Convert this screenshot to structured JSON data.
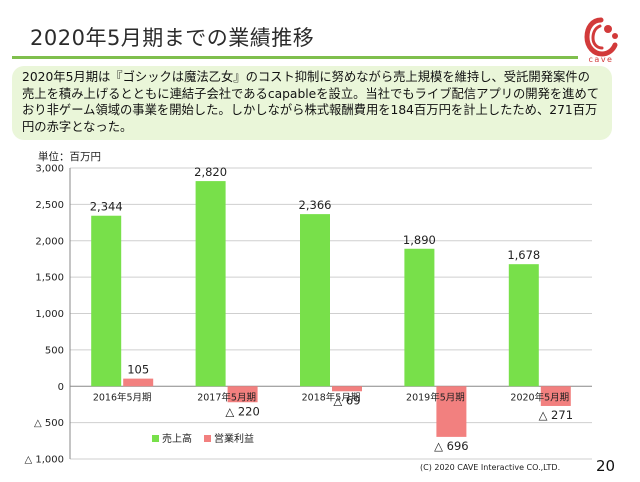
{
  "page": {
    "title": "2020年5月期までの業績推移",
    "summary": "2020年5月期は『ゴシックは魔法乙女』のコスト抑制に努めながら売上規模を維持し、受託開発案件の売上を積み上げるとともに連結子会社であるcapableを設立。当社でもライブ配信アプリの開発を進めており非ゲーム領域の事業を開始した。しかしながら株式報酬費用を184百万円を計上したため、271百万円の赤字となった。",
    "unit_label": "単位：百万円",
    "footer": "(C) 2020 CAVE Interactive CO.,LTD.",
    "page_number": "20",
    "logo_text": "cave"
  },
  "colors": {
    "accent_line": "#7fbf4d",
    "summary_bg": "#eaf6d9",
    "sales": "#78e04a",
    "operating_profit": "#f2807f",
    "logo": "#d23a3a"
  },
  "chart_data": {
    "type": "bar",
    "categories": [
      "2016年5月期",
      "2017年5月期",
      "2018年5月期",
      "2019年5月期",
      "2020年5月期"
    ],
    "series": [
      {
        "name": "売上高",
        "color": "#78e04a",
        "values": [
          2344,
          2820,
          2366,
          1890,
          1678
        ],
        "labels": [
          "2,344",
          "2,820",
          "2,366",
          "1,890",
          "1,678"
        ]
      },
      {
        "name": "営業利益",
        "color": "#f2807f",
        "values": [
          105,
          -220,
          -69,
          -696,
          -271
        ],
        "labels": [
          "105",
          "△ 220",
          "△ 69",
          "△ 696",
          "△ 271"
        ]
      }
    ],
    "ylim": [
      -1000,
      3000
    ],
    "yticks": [
      3000,
      2500,
      2000,
      1500,
      1000,
      500,
      0,
      -500,
      -1000
    ],
    "ytick_labels": [
      "3,000",
      "2,500",
      "2,000",
      "1,500",
      "1,000",
      "500",
      "0",
      "△ 500",
      "△ 1,000"
    ],
    "grid": true,
    "legend_position": "bottom-left"
  }
}
